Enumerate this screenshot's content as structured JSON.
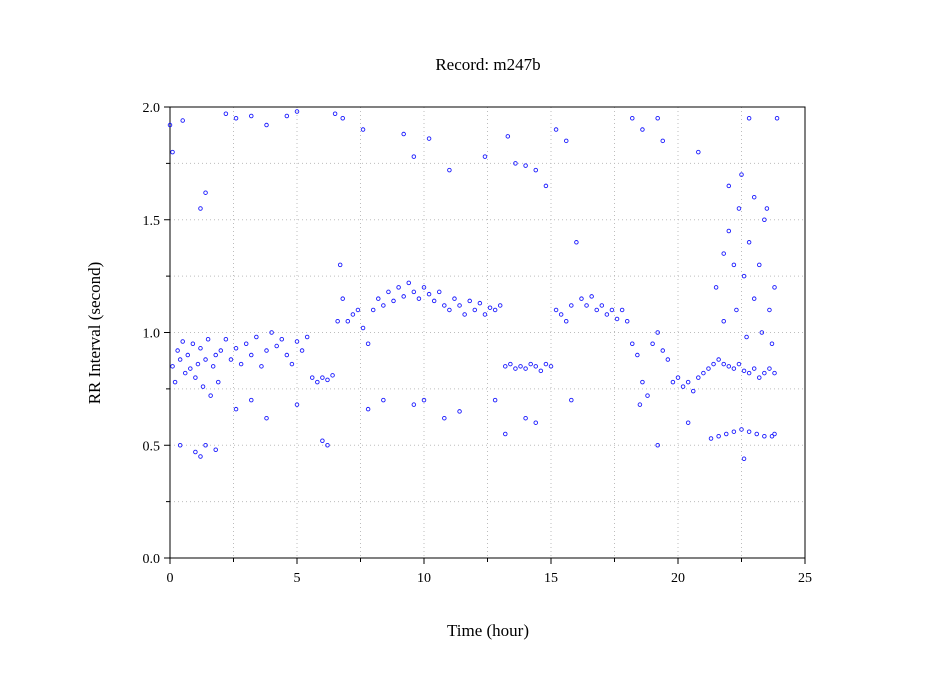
{
  "chart_data": {
    "type": "scatter",
    "title": "Record:  m247b",
    "xlabel": "Time (hour)",
    "ylabel": "RR Interval (second)",
    "xlim": [
      0,
      25
    ],
    "ylim": [
      0,
      2
    ],
    "x_ticks": [
      0,
      5,
      10,
      15,
      20,
      25
    ],
    "x_tick_labels": [
      "0",
      "5",
      "10",
      "15",
      "20",
      "25"
    ],
    "y_ticks": [
      0,
      0.5,
      1,
      1.5,
      2
    ],
    "y_tick_labels": [
      "0.0",
      "0.5",
      "1.0",
      "1.5",
      "2.0"
    ],
    "minor_x_ticks": [
      2.5,
      7.5,
      12.5,
      17.5,
      22.5
    ],
    "minor_y_ticks": [
      0.25,
      0.75,
      1.25,
      1.75
    ],
    "grid": true,
    "marker_color": "#1a1aff",
    "series": [
      {
        "points": [
          [
            0.1,
            0.85
          ],
          [
            0.2,
            0.78
          ],
          [
            0.3,
            0.92
          ],
          [
            0.4,
            0.88
          ],
          [
            0.5,
            0.96
          ],
          [
            0.6,
            0.82
          ],
          [
            0.7,
            0.9
          ],
          [
            0.8,
            0.84
          ],
          [
            0.9,
            0.95
          ],
          [
            1.0,
            0.8
          ],
          [
            1.1,
            0.86
          ],
          [
            1.2,
            0.93
          ],
          [
            1.3,
            0.76
          ],
          [
            1.4,
            0.88
          ],
          [
            1.5,
            0.97
          ],
          [
            1.6,
            0.72
          ],
          [
            1.7,
            0.85
          ],
          [
            1.8,
            0.9
          ],
          [
            1.9,
            0.78
          ],
          [
            2.0,
            0.92
          ],
          [
            2.2,
            0.97
          ],
          [
            2.4,
            0.88
          ],
          [
            2.6,
            0.93
          ],
          [
            2.8,
            0.86
          ],
          [
            3.0,
            0.95
          ],
          [
            3.2,
            0.9
          ],
          [
            3.4,
            0.98
          ],
          [
            3.6,
            0.85
          ],
          [
            3.8,
            0.92
          ],
          [
            4.0,
            1.0
          ],
          [
            4.2,
            0.94
          ],
          [
            4.4,
            0.97
          ],
          [
            4.6,
            0.9
          ],
          [
            4.8,
            0.86
          ],
          [
            5.0,
            0.96
          ],
          [
            5.2,
            0.92
          ],
          [
            5.4,
            0.98
          ],
          [
            5.6,
            0.8
          ],
          [
            5.8,
            0.78
          ],
          [
            6.0,
            0.8
          ],
          [
            6.2,
            0.79
          ],
          [
            6.4,
            0.81
          ],
          [
            6.6,
            1.05
          ],
          [
            6.7,
            1.3
          ],
          [
            6.8,
            1.15
          ],
          [
            7.0,
            1.05
          ],
          [
            7.2,
            1.08
          ],
          [
            7.4,
            1.1
          ],
          [
            7.6,
            1.02
          ],
          [
            7.8,
            0.95
          ],
          [
            8.0,
            1.1
          ],
          [
            8.2,
            1.15
          ],
          [
            8.4,
            1.12
          ],
          [
            8.6,
            1.18
          ],
          [
            8.8,
            1.14
          ],
          [
            9.0,
            1.2
          ],
          [
            9.2,
            1.16
          ],
          [
            9.4,
            1.22
          ],
          [
            9.6,
            1.18
          ],
          [
            9.8,
            1.15
          ],
          [
            10.0,
            1.2
          ],
          [
            10.2,
            1.17
          ],
          [
            10.4,
            1.14
          ],
          [
            10.6,
            1.18
          ],
          [
            10.8,
            1.12
          ],
          [
            11.0,
            1.1
          ],
          [
            11.2,
            1.15
          ],
          [
            11.4,
            1.12
          ],
          [
            11.6,
            1.08
          ],
          [
            11.8,
            1.14
          ],
          [
            12.0,
            1.1
          ],
          [
            12.2,
            1.13
          ],
          [
            12.4,
            1.08
          ],
          [
            12.6,
            1.11
          ],
          [
            12.8,
            1.1
          ],
          [
            13.0,
            1.12
          ],
          [
            13.2,
            0.85
          ],
          [
            13.4,
            0.86
          ],
          [
            13.6,
            0.84
          ],
          [
            13.8,
            0.85
          ],
          [
            14.0,
            0.84
          ],
          [
            14.2,
            0.86
          ],
          [
            14.4,
            0.85
          ],
          [
            14.6,
            0.83
          ],
          [
            14.8,
            0.86
          ],
          [
            15.0,
            0.85
          ],
          [
            15.2,
            1.1
          ],
          [
            15.4,
            1.08
          ],
          [
            15.6,
            1.05
          ],
          [
            15.8,
            1.12
          ],
          [
            16.0,
            1.4
          ],
          [
            16.2,
            1.15
          ],
          [
            16.4,
            1.12
          ],
          [
            16.6,
            1.16
          ],
          [
            16.8,
            1.1
          ],
          [
            17.0,
            1.12
          ],
          [
            17.2,
            1.08
          ],
          [
            17.4,
            1.1
          ],
          [
            17.6,
            1.06
          ],
          [
            17.8,
            1.1
          ],
          [
            18.0,
            1.05
          ],
          [
            18.2,
            0.95
          ],
          [
            18.4,
            0.9
          ],
          [
            18.6,
            0.78
          ],
          [
            18.8,
            0.72
          ],
          [
            19.0,
            0.95
          ],
          [
            19.2,
            1.0
          ],
          [
            19.4,
            0.92
          ],
          [
            19.6,
            0.88
          ],
          [
            19.8,
            0.78
          ],
          [
            20.0,
            0.8
          ],
          [
            20.2,
            0.76
          ],
          [
            20.4,
            0.78
          ],
          [
            20.6,
            0.74
          ],
          [
            20.8,
            0.8
          ],
          [
            21.0,
            0.82
          ],
          [
            21.2,
            0.84
          ],
          [
            21.4,
            0.86
          ],
          [
            21.6,
            0.88
          ],
          [
            21.8,
            0.86
          ],
          [
            22.0,
            0.85
          ],
          [
            22.2,
            0.84
          ],
          [
            22.4,
            0.86
          ],
          [
            22.6,
            0.83
          ],
          [
            22.8,
            0.82
          ],
          [
            23.0,
            0.84
          ],
          [
            23.2,
            0.8
          ],
          [
            23.4,
            0.82
          ],
          [
            23.6,
            0.84
          ],
          [
            23.8,
            0.82
          ],
          [
            0.4,
            0.5
          ],
          [
            1.0,
            0.47
          ],
          [
            1.2,
            0.45
          ],
          [
            1.4,
            0.5
          ],
          [
            1.8,
            0.48
          ],
          [
            6.0,
            0.52
          ],
          [
            6.2,
            0.5
          ],
          [
            21.3,
            0.53
          ],
          [
            21.6,
            0.54
          ],
          [
            21.9,
            0.55
          ],
          [
            22.2,
            0.56
          ],
          [
            22.5,
            0.57
          ],
          [
            22.8,
            0.56
          ],
          [
            23.1,
            0.55
          ],
          [
            23.4,
            0.54
          ],
          [
            23.7,
            0.54
          ],
          [
            21.5,
            1.2
          ],
          [
            21.8,
            1.35
          ],
          [
            22.0,
            1.45
          ],
          [
            22.2,
            1.3
          ],
          [
            22.4,
            1.55
          ],
          [
            22.6,
            1.25
          ],
          [
            22.8,
            1.4
          ],
          [
            23.0,
            1.15
          ],
          [
            23.2,
            1.3
          ],
          [
            23.4,
            1.5
          ],
          [
            23.6,
            1.1
          ],
          [
            23.8,
            1.2
          ],
          [
            21.8,
            1.05
          ],
          [
            22.3,
            1.1
          ],
          [
            22.7,
            0.98
          ],
          [
            23.3,
            1.0
          ],
          [
            23.7,
            0.95
          ],
          [
            22.0,
            1.65
          ],
          [
            22.5,
            1.7
          ],
          [
            23.0,
            1.6
          ],
          [
            23.5,
            1.55
          ],
          [
            0.0,
            1.92
          ],
          [
            0.1,
            1.8
          ],
          [
            0.5,
            1.94
          ],
          [
            1.2,
            1.55
          ],
          [
            1.4,
            1.62
          ],
          [
            2.2,
            1.97
          ],
          [
            2.6,
            1.95
          ],
          [
            3.2,
            1.96
          ],
          [
            3.8,
            1.92
          ],
          [
            4.6,
            1.96
          ],
          [
            5.0,
            1.98
          ],
          [
            6.5,
            1.97
          ],
          [
            6.8,
            1.95
          ],
          [
            7.6,
            1.9
          ],
          [
            9.2,
            1.88
          ],
          [
            9.6,
            1.78
          ],
          [
            10.2,
            1.86
          ],
          [
            11.0,
            1.72
          ],
          [
            12.4,
            1.78
          ],
          [
            13.3,
            1.87
          ],
          [
            13.6,
            1.75
          ],
          [
            14.0,
            1.74
          ],
          [
            14.4,
            1.72
          ],
          [
            14.8,
            1.65
          ],
          [
            15.2,
            1.9
          ],
          [
            15.6,
            1.85
          ],
          [
            18.2,
            1.95
          ],
          [
            18.6,
            1.9
          ],
          [
            19.2,
            1.95
          ],
          [
            19.4,
            1.85
          ],
          [
            20.8,
            1.8
          ],
          [
            22.8,
            1.95
          ],
          [
            23.9,
            1.95
          ],
          [
            2.6,
            0.66
          ],
          [
            3.2,
            0.7
          ],
          [
            3.8,
            0.62
          ],
          [
            5.0,
            0.68
          ],
          [
            7.8,
            0.66
          ],
          [
            8.4,
            0.7
          ],
          [
            9.6,
            0.68
          ],
          [
            10.0,
            0.7
          ],
          [
            10.8,
            0.62
          ],
          [
            11.4,
            0.65
          ],
          [
            12.8,
            0.7
          ],
          [
            13.2,
            0.55
          ],
          [
            14.0,
            0.62
          ],
          [
            14.4,
            0.6
          ],
          [
            15.8,
            0.7
          ],
          [
            18.5,
            0.68
          ],
          [
            19.2,
            0.5
          ],
          [
            20.4,
            0.6
          ],
          [
            22.6,
            0.44
          ],
          [
            23.8,
            0.55
          ]
        ]
      }
    ]
  }
}
